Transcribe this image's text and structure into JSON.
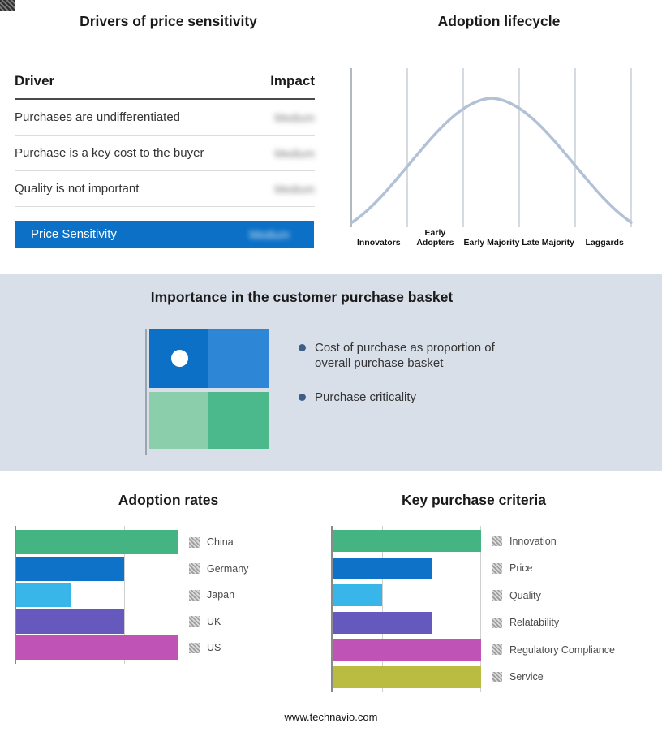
{
  "page": {
    "footer": "www.technavio.com"
  },
  "drivers": {
    "title": "Drivers of price sensitivity",
    "header": {
      "driver": "Driver",
      "impact": "Impact"
    },
    "rows": [
      {
        "driver": "Purchases are undifferentiated",
        "impact": "Medium"
      },
      {
        "driver": "Purchase is a key cost to the buyer",
        "impact": "Medium"
      },
      {
        "driver": "Quality is not important",
        "impact": "Medium"
      }
    ],
    "highlight_row": {
      "driver": "Price Sensitivity",
      "impact": "Medium"
    },
    "highlight_color": "#0b70c6",
    "impact_values_blurred": true
  },
  "lifecycle": {
    "title": "Adoption lifecycle",
    "stages": [
      "Innovators",
      "Early Adopters",
      "Early Majority",
      "Late Majority",
      "Laggards"
    ],
    "curve_color": "#b2c1d6"
  },
  "basket": {
    "title": "Importance in the customer purchase basket",
    "bullets": [
      "Cost of purchase as proportion of overall purchase basket",
      "Purchase criticality"
    ],
    "quadrant_colors": [
      "#0b70c6",
      "#2e87d6",
      "#8bceab",
      "#4cb98c"
    ],
    "band_color": "#d8dfe9"
  },
  "chart_data": [
    {
      "type": "line",
      "name": "adoption-lifecycle",
      "title": "Adoption lifecycle",
      "shape": "bell-curve",
      "categories": [
        "Innovators",
        "Early Adopters",
        "Early Majority",
        "Late Majority",
        "Laggards"
      ],
      "values": [
        0.15,
        0.6,
        1.0,
        0.6,
        0.15
      ],
      "ylim": [
        0,
        1
      ],
      "grid": "vertical-only",
      "line_color": "#b2c1d6"
    },
    {
      "type": "bar",
      "name": "adoption-rates",
      "title": "Adoption rates",
      "orientation": "horizontal",
      "categories": [
        "China",
        "Germany",
        "Japan",
        "UK",
        "US"
      ],
      "values": [
        3,
        2,
        1,
        2,
        3
      ],
      "xlim": [
        0,
        3
      ],
      "xmax": 3,
      "grid": true,
      "legend_position": "right",
      "colors": [
        "#44b582",
        "#0e72c8",
        "#38b6e9",
        "#6659bd",
        "#c053b6"
      ]
    },
    {
      "type": "bar",
      "name": "key-purchase-criteria",
      "title": "Key purchase criteria",
      "orientation": "horizontal",
      "categories": [
        "Innovation",
        "Price",
        "Quality",
        "Relatability",
        "Regulatory Compliance",
        "Service"
      ],
      "values": [
        3,
        2,
        1,
        2,
        3,
        3
      ],
      "xlim": [
        0,
        3
      ],
      "xmax": 3,
      "grid": true,
      "legend_position": "right",
      "colors": [
        "#44b582",
        "#0e72c8",
        "#38b6e9",
        "#6659bd",
        "#c053b6",
        "#b9bc41"
      ]
    }
  ]
}
